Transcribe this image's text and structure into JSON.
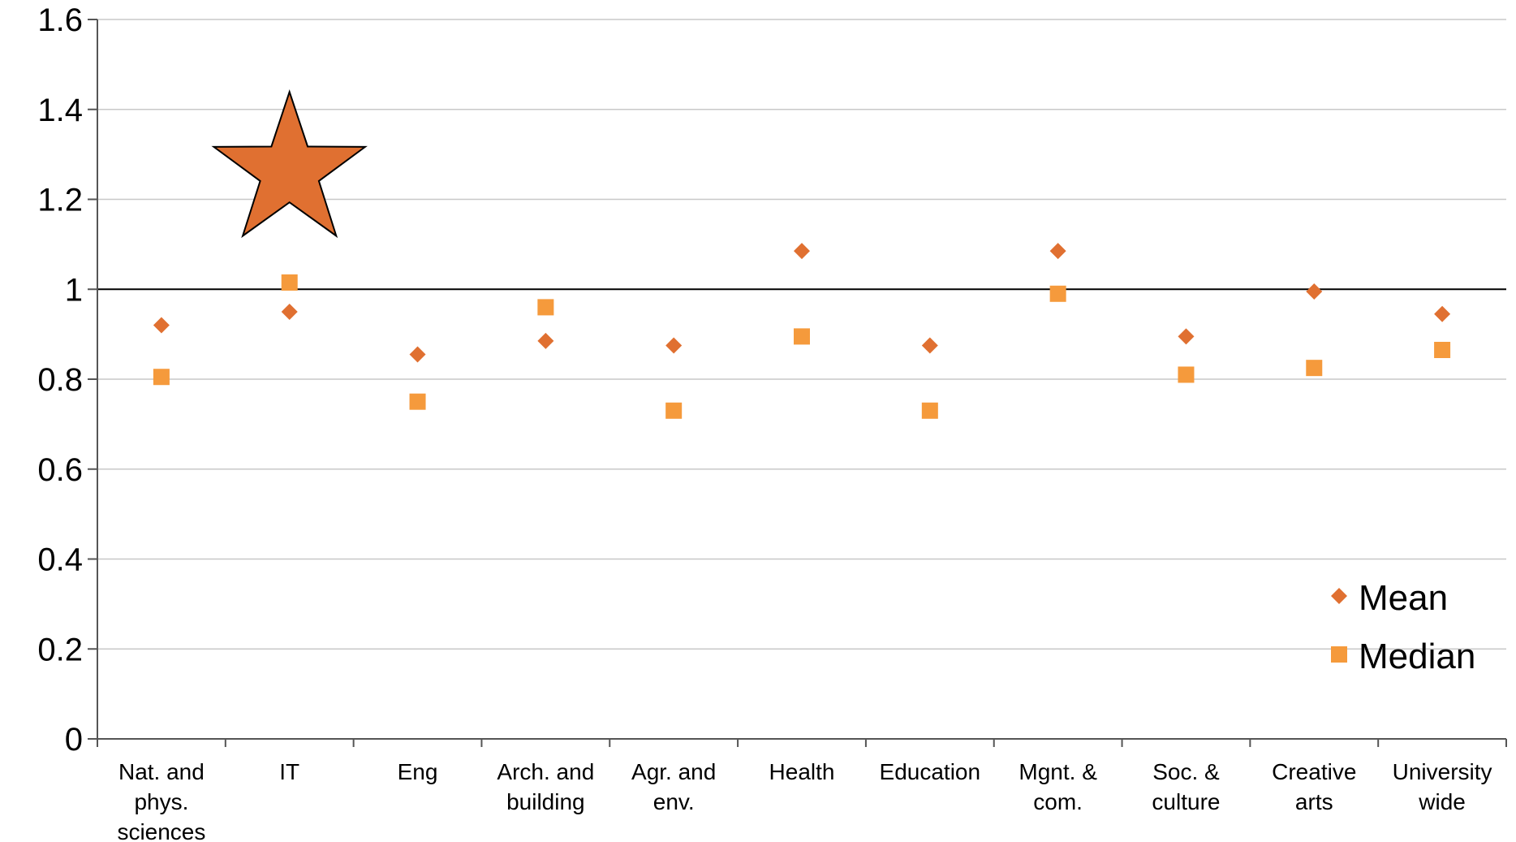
{
  "chart_data": {
    "type": "scatter",
    "categories": [
      [
        "Nat. and",
        "phys.",
        "sciences"
      ],
      [
        "IT"
      ],
      [
        "Eng"
      ],
      [
        "Arch. and",
        "building"
      ],
      [
        "Agr. and",
        "env."
      ],
      [
        "Health"
      ],
      [
        "Education"
      ],
      [
        "Mgnt. &",
        "com."
      ],
      [
        "Soc. &",
        "culture"
      ],
      [
        "Creative",
        "arts"
      ],
      [
        "University",
        "wide"
      ]
    ],
    "series": [
      {
        "name": "Mean",
        "marker": "diamond",
        "color": "#E07031",
        "values": [
          0.92,
          0.95,
          0.855,
          0.885,
          0.875,
          1.085,
          0.875,
          1.085,
          0.895,
          0.995,
          0.945
        ]
      },
      {
        "name": "Median",
        "marker": "square",
        "color": "#F59A3C",
        "values": [
          0.805,
          1.015,
          0.75,
          0.96,
          0.73,
          0.895,
          0.73,
          0.99,
          0.81,
          0.825,
          0.865
        ]
      }
    ],
    "highlight": {
      "marker": "star",
      "category_index": 1,
      "y": 1.28,
      "color": "#E07031"
    },
    "reference_line": {
      "y": 1
    },
    "yticks": [
      "0",
      "0.2",
      "0.4",
      "0.6",
      "0.8",
      "1",
      "1.2",
      "1.4",
      "1.6"
    ],
    "ylim": [
      0,
      1.6
    ],
    "grid": true,
    "legend_position": "bottom-right",
    "title": "",
    "xlabel": "",
    "ylabel": ""
  }
}
